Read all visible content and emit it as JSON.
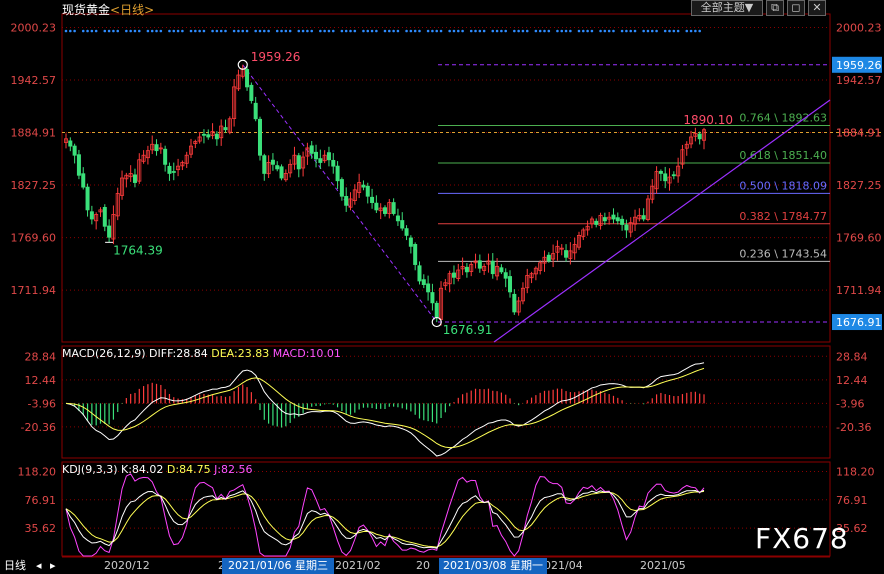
{
  "header": {
    "title": "现货黄金",
    "period": "<日线>"
  },
  "toolbar": {
    "all_topics": "全部主题▼",
    "restore": "⧉",
    "maximize": "◻",
    "close": "✕"
  },
  "watermark": "FX678",
  "bottom_tabs": {
    "period": "日线",
    "prev": "◂",
    "next": "▸"
  },
  "date_highlights": [
    "2021/01/06 星期三",
    "2021/03/08 星期一"
  ],
  "colors": {
    "up": "#ff3b3b",
    "down": "#3be07a",
    "grid": "#8b0000",
    "bg": "#000000"
  },
  "chart_data": [
    {
      "type": "candlestick",
      "price_axis": [
        "2000.23",
        "1942.57",
        "1884.91",
        "1827.25",
        "1769.60",
        "1711.94"
      ],
      "ylim": [
        1655,
        2015
      ],
      "annotations": {
        "high": "1959.26",
        "low_left": "1764.39",
        "low": "1676.91",
        "last": "1890.10"
      },
      "right_tags": {
        "current": "1884.91",
        "high": "1959.26",
        "low": "1676.91"
      },
      "fib_levels": [
        {
          "label": "0.764 \\ 1892.63",
          "value": 1892.63,
          "color": "#4caf50"
        },
        {
          "label": "0.618 \\ 1851.40",
          "value": 1851.4,
          "color": "#4caf50"
        },
        {
          "label": "0.500 \\ 1818.09",
          "value": 1818.09,
          "color": "#6a6aff"
        },
        {
          "label": "0.382 \\ 1784.77",
          "value": 1784.77,
          "color": "#e04040"
        },
        {
          "label": "0.236 \\ 1743.54",
          "value": 1743.54,
          "color": "#bbbbbb"
        }
      ],
      "x_labels": [
        "2020/12",
        "2021/02",
        "2021/04",
        "2021/05"
      ],
      "closes": [
        1878,
        1870,
        1860,
        1838,
        1825,
        1800,
        1790,
        1795,
        1800,
        1782,
        1770,
        1795,
        1818,
        1835,
        1838,
        1840,
        1830,
        1855,
        1860,
        1865,
        1872,
        1865,
        1868,
        1850,
        1840,
        1842,
        1848,
        1852,
        1860,
        1870,
        1875,
        1880,
        1882,
        1880,
        1886,
        1878,
        1892,
        1888,
        1900,
        1935,
        1948,
        1955,
        1935,
        1920,
        1900,
        1860,
        1840,
        1852,
        1850,
        1845,
        1835,
        1840,
        1850,
        1860,
        1845,
        1858,
        1868,
        1862,
        1856,
        1852,
        1860,
        1855,
        1848,
        1832,
        1815,
        1805,
        1812,
        1822,
        1830,
        1825,
        1815,
        1808,
        1800,
        1802,
        1796,
        1808,
        1796,
        1788,
        1780,
        1772,
        1760,
        1740,
        1722,
        1718,
        1710,
        1698,
        1682,
        1714,
        1720,
        1730,
        1726,
        1734,
        1738,
        1732,
        1740,
        1744,
        1736,
        1738,
        1744,
        1730,
        1738,
        1732,
        1725,
        1710,
        1688,
        1700,
        1714,
        1728,
        1730,
        1736,
        1742,
        1748,
        1744,
        1752,
        1760,
        1758,
        1748,
        1755,
        1762,
        1772,
        1778,
        1782,
        1790,
        1784,
        1794,
        1788,
        1792,
        1790,
        1788,
        1784,
        1778,
        1786,
        1792,
        1794,
        1790,
        1812,
        1826,
        1842,
        1840,
        1832,
        1836,
        1838,
        1848,
        1866,
        1872,
        1880,
        1884,
        1878,
        1888
      ],
      "macd_params": "MACD(26,12,9)",
      "macd_values": {
        "diff": "DIFF:28.84",
        "dea": "DEA:23.83",
        "macd": "MACD:10.01"
      },
      "macd_axis": [
        "28.84",
        "12.44",
        "-3.96",
        "-20.36"
      ],
      "macd_ylim": [
        -42,
        36
      ],
      "kdj_params": "KDJ(9,3,3)",
      "kdj_values": {
        "k": "K:84.02",
        "d": "D:84.75",
        "j": "J:82.56"
      },
      "kdj_axis": [
        "118.20",
        "76.91",
        "35.62"
      ],
      "kdj_ylim": [
        -5,
        132
      ]
    }
  ]
}
